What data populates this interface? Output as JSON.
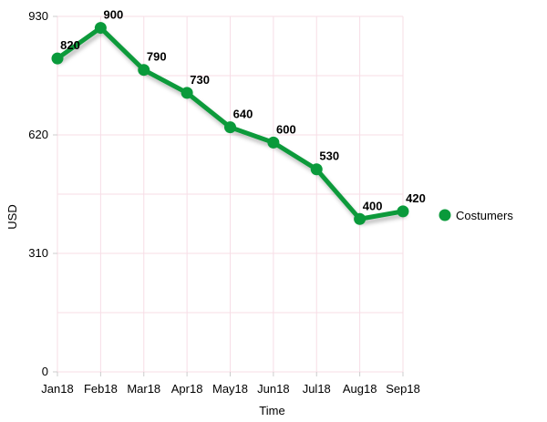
{
  "chart_data": {
    "type": "line",
    "title": "",
    "xlabel": "Time",
    "ylabel": "USD",
    "categories": [
      "Jan18",
      "Feb18",
      "Mar18",
      "Apr18",
      "May18",
      "Jun18",
      "Jul18",
      "Aug18",
      "Sep18"
    ],
    "series": [
      {
        "name": "Costumers",
        "values": [
          820,
          900,
          790,
          730,
          640,
          600,
          530,
          400,
          420
        ],
        "color": "#0a9a3b"
      }
    ],
    "ylim": [
      0,
      930
    ],
    "yticks": [
      0,
      310,
      620,
      930
    ],
    "grid": true,
    "legend_position": "right",
    "data_labels": true
  }
}
